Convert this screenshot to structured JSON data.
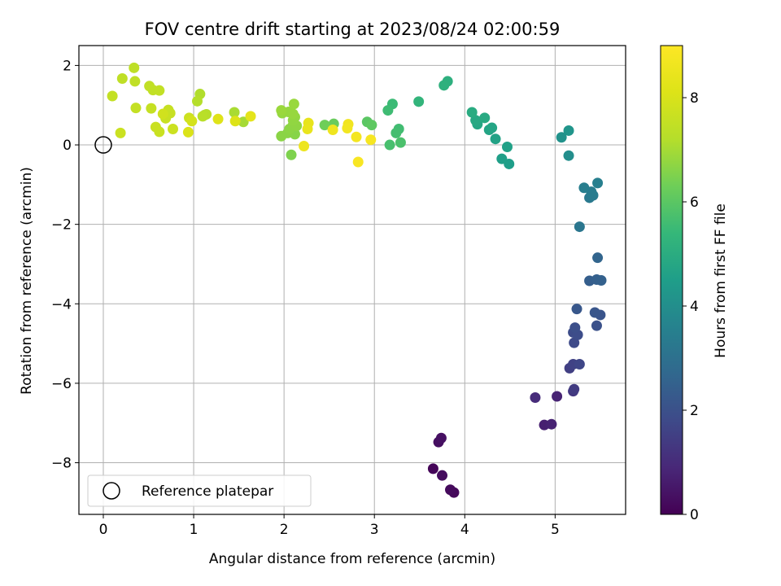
{
  "chart_data": {
    "type": "scatter",
    "title": "FOV centre drift starting at 2023/08/24 02:00:59",
    "xlabel": "Angular distance from reference (arcmin)",
    "ylabel": "Rotation from reference (arcmin)",
    "xlim": [
      -0.27,
      5.78
    ],
    "ylim": [
      -9.3,
      2.5
    ],
    "x_ticks": [
      0,
      1,
      2,
      3,
      4,
      5
    ],
    "y_ticks": [
      -8,
      -6,
      -4,
      -2,
      0,
      2
    ],
    "grid": true,
    "colorbar": {
      "label": "Hours from first FF file",
      "colormap": "viridis",
      "range": [
        0,
        9
      ],
      "ticks": [
        0,
        2,
        4,
        6,
        8
      ]
    },
    "legend": {
      "position": "lower-left",
      "entries": [
        "Reference platepar"
      ]
    },
    "reference_point": {
      "x": 0,
      "y": 0,
      "label": "Reference platepar"
    },
    "points": [
      {
        "x": 3.65,
        "y": -8.15,
        "c": 0.1
      },
      {
        "x": 3.88,
        "y": -8.75,
        "c": 0.15
      },
      {
        "x": 3.84,
        "y": -8.68,
        "c": 0.2
      },
      {
        "x": 3.75,
        "y": -8.32,
        "c": 0.25
      },
      {
        "x": 3.71,
        "y": -7.48,
        "c": 0.3
      },
      {
        "x": 3.74,
        "y": -7.38,
        "c": 0.35
      },
      {
        "x": 4.88,
        "y": -7.05,
        "c": 0.7
      },
      {
        "x": 4.96,
        "y": -7.03,
        "c": 0.75
      },
      {
        "x": 5.02,
        "y": -6.33,
        "c": 0.8
      },
      {
        "x": 4.78,
        "y": -6.36,
        "c": 1.0
      },
      {
        "x": 5.2,
        "y": -6.2,
        "c": 1.3
      },
      {
        "x": 5.21,
        "y": -6.15,
        "c": 1.4
      },
      {
        "x": 5.16,
        "y": -5.62,
        "c": 1.5
      },
      {
        "x": 5.2,
        "y": -5.52,
        "c": 1.6
      },
      {
        "x": 5.27,
        "y": -5.52,
        "c": 1.7
      },
      {
        "x": 5.21,
        "y": -4.98,
        "c": 1.8
      },
      {
        "x": 5.2,
        "y": -4.72,
        "c": 1.85
      },
      {
        "x": 5.25,
        "y": -4.78,
        "c": 1.9
      },
      {
        "x": 5.22,
        "y": -4.6,
        "c": 1.95
      },
      {
        "x": 5.46,
        "y": -4.55,
        "c": 2.0
      },
      {
        "x": 5.5,
        "y": -4.28,
        "c": 2.1
      },
      {
        "x": 5.44,
        "y": -4.22,
        "c": 2.15
      },
      {
        "x": 5.24,
        "y": -4.13,
        "c": 2.2
      },
      {
        "x": 5.38,
        "y": -3.42,
        "c": 2.4
      },
      {
        "x": 5.46,
        "y": -3.39,
        "c": 2.45
      },
      {
        "x": 5.51,
        "y": -3.41,
        "c": 2.5
      },
      {
        "x": 5.47,
        "y": -2.84,
        "c": 2.6
      },
      {
        "x": 5.27,
        "y": -2.06,
        "c": 3.2
      },
      {
        "x": 5.38,
        "y": -1.33,
        "c": 3.3
      },
      {
        "x": 5.42,
        "y": -1.27,
        "c": 3.35
      },
      {
        "x": 5.4,
        "y": -1.18,
        "c": 3.4
      },
      {
        "x": 5.32,
        "y": -1.08,
        "c": 3.45
      },
      {
        "x": 5.47,
        "y": -0.96,
        "c": 3.5
      },
      {
        "x": 5.15,
        "y": -0.27,
        "c": 4.0
      },
      {
        "x": 5.07,
        "y": 0.19,
        "c": 4.1
      },
      {
        "x": 5.15,
        "y": 0.36,
        "c": 4.2
      },
      {
        "x": 4.49,
        "y": -0.48,
        "c": 4.5
      },
      {
        "x": 4.41,
        "y": -0.35,
        "c": 4.55
      },
      {
        "x": 4.47,
        "y": -0.05,
        "c": 4.6
      },
      {
        "x": 4.34,
        "y": 0.15,
        "c": 4.65
      },
      {
        "x": 4.27,
        "y": 0.38,
        "c": 4.7
      },
      {
        "x": 4.3,
        "y": 0.43,
        "c": 4.75
      },
      {
        "x": 4.14,
        "y": 0.52,
        "c": 4.8
      },
      {
        "x": 4.12,
        "y": 0.62,
        "c": 4.85
      },
      {
        "x": 4.22,
        "y": 0.68,
        "c": 4.9
      },
      {
        "x": 4.08,
        "y": 0.82,
        "c": 4.95
      },
      {
        "x": 3.81,
        "y": 1.6,
        "c": 5.1
      },
      {
        "x": 3.77,
        "y": 1.5,
        "c": 5.15
      },
      {
        "x": 3.49,
        "y": 1.09,
        "c": 5.3
      },
      {
        "x": 3.2,
        "y": 1.03,
        "c": 5.5
      },
      {
        "x": 3.15,
        "y": 0.87,
        "c": 5.55
      },
      {
        "x": 3.27,
        "y": 0.4,
        "c": 5.6
      },
      {
        "x": 3.24,
        "y": 0.3,
        "c": 5.65
      },
      {
        "x": 3.17,
        "y": 0.0,
        "c": 5.7
      },
      {
        "x": 3.29,
        "y": 0.06,
        "c": 5.75
      },
      {
        "x": 2.92,
        "y": 0.58,
        "c": 6.0
      },
      {
        "x": 2.97,
        "y": 0.5,
        "c": 6.05
      },
      {
        "x": 2.55,
        "y": 0.53,
        "c": 6.2
      },
      {
        "x": 2.45,
        "y": 0.5,
        "c": 6.3
      },
      {
        "x": 2.08,
        "y": -0.25,
        "c": 6.5
      },
      {
        "x": 2.1,
        "y": 0.35,
        "c": 6.6
      },
      {
        "x": 2.12,
        "y": 0.27,
        "c": 6.62
      },
      {
        "x": 2.04,
        "y": 0.3,
        "c": 6.64
      },
      {
        "x": 1.97,
        "y": 0.22,
        "c": 6.66
      },
      {
        "x": 2.06,
        "y": 0.4,
        "c": 6.68
      },
      {
        "x": 2.1,
        "y": 0.5,
        "c": 6.7
      },
      {
        "x": 2.14,
        "y": 0.48,
        "c": 6.72
      },
      {
        "x": 2.1,
        "y": 0.62,
        "c": 6.74
      },
      {
        "x": 2.12,
        "y": 0.7,
        "c": 6.76
      },
      {
        "x": 1.98,
        "y": 0.8,
        "c": 6.78
      },
      {
        "x": 2.05,
        "y": 0.83,
        "c": 6.8
      },
      {
        "x": 2.1,
        "y": 0.78,
        "c": 6.82
      },
      {
        "x": 2.11,
        "y": 1.03,
        "c": 6.84
      },
      {
        "x": 1.97,
        "y": 0.87,
        "c": 6.86
      },
      {
        "x": 1.55,
        "y": 0.58,
        "c": 7.0
      },
      {
        "x": 1.45,
        "y": 0.82,
        "c": 7.05
      },
      {
        "x": 1.12,
        "y": 0.75,
        "c": 7.1
      },
      {
        "x": 1.07,
        "y": 1.28,
        "c": 7.15
      },
      {
        "x": 1.04,
        "y": 1.1,
        "c": 7.2
      },
      {
        "x": 1.14,
        "y": 0.77,
        "c": 7.25
      },
      {
        "x": 1.1,
        "y": 0.72,
        "c": 7.3
      },
      {
        "x": 0.34,
        "y": 1.94,
        "c": 7.4
      },
      {
        "x": 0.21,
        "y": 1.67,
        "c": 7.42
      },
      {
        "x": 0.35,
        "y": 1.6,
        "c": 7.44
      },
      {
        "x": 0.51,
        "y": 1.48,
        "c": 7.46
      },
      {
        "x": 0.55,
        "y": 1.38,
        "c": 7.48
      },
      {
        "x": 0.62,
        "y": 1.37,
        "c": 7.5
      },
      {
        "x": 0.1,
        "y": 1.23,
        "c": 7.52
      },
      {
        "x": 0.36,
        "y": 0.93,
        "c": 7.54
      },
      {
        "x": 0.53,
        "y": 0.92,
        "c": 7.56
      },
      {
        "x": 0.72,
        "y": 0.88,
        "c": 7.58
      },
      {
        "x": 0.74,
        "y": 0.8,
        "c": 7.6
      },
      {
        "x": 0.69,
        "y": 0.67,
        "c": 7.62
      },
      {
        "x": 0.58,
        "y": 0.45,
        "c": 7.64
      },
      {
        "x": 0.62,
        "y": 0.33,
        "c": 7.66
      },
      {
        "x": 0.19,
        "y": 0.3,
        "c": 7.68
      },
      {
        "x": 0.77,
        "y": 0.4,
        "c": 7.7
      },
      {
        "x": 0.95,
        "y": 0.68,
        "c": 7.72
      },
      {
        "x": 0.66,
        "y": 0.78,
        "c": 7.8
      },
      {
        "x": 0.98,
        "y": 0.6,
        "c": 7.9
      },
      {
        "x": 0.94,
        "y": 0.32,
        "c": 8.05
      },
      {
        "x": 1.46,
        "y": 0.6,
        "c": 8.1
      },
      {
        "x": 1.27,
        "y": 0.65,
        "c": 8.15
      },
      {
        "x": 1.63,
        "y": 0.72,
        "c": 8.3
      },
      {
        "x": 2.27,
        "y": 0.55,
        "c": 8.4
      },
      {
        "x": 2.26,
        "y": 0.4,
        "c": 8.45
      },
      {
        "x": 2.22,
        "y": -0.03,
        "c": 8.55
      },
      {
        "x": 2.54,
        "y": 0.38,
        "c": 8.6
      },
      {
        "x": 2.71,
        "y": 0.52,
        "c": 8.65
      },
      {
        "x": 2.7,
        "y": 0.42,
        "c": 8.7
      },
      {
        "x": 2.8,
        "y": 0.2,
        "c": 8.75
      },
      {
        "x": 2.96,
        "y": 0.13,
        "c": 8.8
      },
      {
        "x": 2.82,
        "y": -0.43,
        "c": 8.85
      }
    ]
  }
}
